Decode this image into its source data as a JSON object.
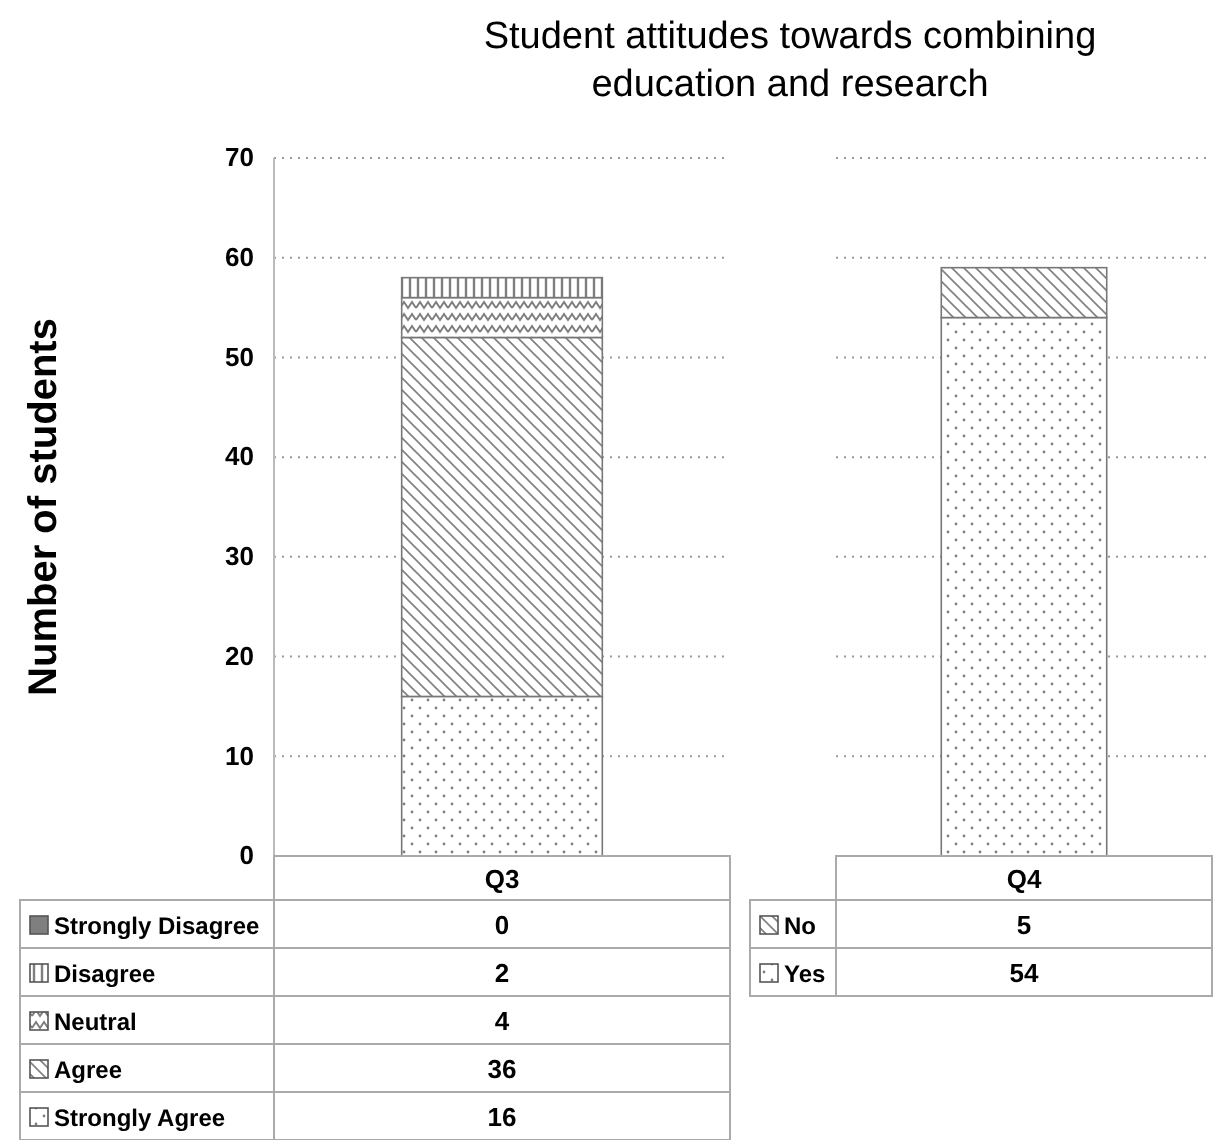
{
  "chart_data": [
    {
      "type": "bar",
      "title": "Student attitudes towards combining education and research",
      "ylabel": "Number of students",
      "categories": [
        "Q3"
      ],
      "stacked": true,
      "ylim": [
        0,
        70
      ],
      "yticks": [
        0,
        10,
        20,
        30,
        40,
        50,
        60,
        70
      ],
      "grid": "y",
      "legend": "bottom",
      "annotations": [
        "0",
        "2",
        "4",
        "36",
        "16"
      ],
      "series": [
        {
          "name": "Strongly Agree",
          "color": "#7f7f7f",
          "values": [
            16
          ]
        },
        {
          "name": "Agree",
          "color": "#7f7f7f",
          "values": [
            36
          ]
        },
        {
          "name": "Neutral",
          "color": "#7f7f7f",
          "values": [
            4
          ]
        },
        {
          "name": "Disagree",
          "color": "#7f7f7f",
          "values": [
            2
          ]
        },
        {
          "name": "Strongly Disagree",
          "color": "#7f7f7f",
          "values": [
            0
          ]
        }
      ]
    },
    {
      "type": "bar",
      "categories": [
        "Q4"
      ],
      "stacked": true,
      "ylim": [
        0,
        70
      ],
      "yticks": [
        0,
        10,
        20,
        30,
        40,
        50,
        60,
        70
      ],
      "grid": "y",
      "legend": "bottom",
      "annotations": [
        "5",
        "54"
      ],
      "tick_labels": "x",
      "series": [
        {
          "name": "Yes",
          "color": "#7f7f7f",
          "values": [
            54
          ]
        },
        {
          "name": "No",
          "color": "#7f7f7f",
          "values": [
            5
          ]
        }
      ]
    }
  ]
}
